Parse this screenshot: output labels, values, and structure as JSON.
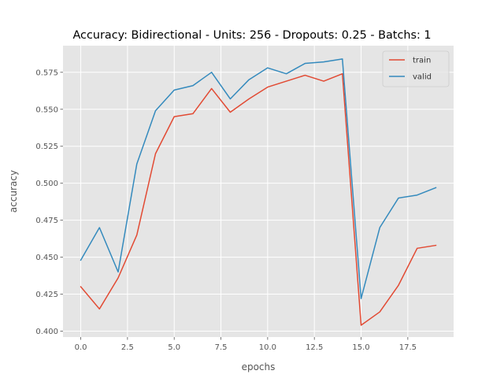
{
  "chart_data": {
    "type": "line",
    "title": "Accuracy: Bidirectional - Units: 256 - Dropouts: 0.25 - Batchs: 1",
    "xlabel": "epochs",
    "ylabel": "accuracy",
    "x": [
      0,
      1,
      2,
      3,
      4,
      5,
      6,
      7,
      8,
      9,
      10,
      11,
      12,
      13,
      14,
      15,
      16,
      17,
      18,
      19
    ],
    "xlim": [
      -0.95,
      19.95
    ],
    "ylim": [
      0.396,
      0.593
    ],
    "xticks": [
      0.0,
      2.5,
      5.0,
      7.5,
      10.0,
      12.5,
      15.0,
      17.5
    ],
    "xtick_labels": [
      "0.0",
      "2.5",
      "5.0",
      "7.5",
      "10.0",
      "12.5",
      "15.0",
      "17.5"
    ],
    "yticks": [
      0.4,
      0.425,
      0.45,
      0.475,
      0.5,
      0.525,
      0.55,
      0.575
    ],
    "ytick_labels": [
      "0.400",
      "0.425",
      "0.450",
      "0.475",
      "0.500",
      "0.525",
      "0.550",
      "0.575"
    ],
    "grid": true,
    "legend_position": "top-right",
    "series": [
      {
        "name": "train",
        "color": "#E24A33",
        "values": [
          0.43,
          0.415,
          0.436,
          0.465,
          0.52,
          0.545,
          0.547,
          0.564,
          0.548,
          0.557,
          0.565,
          0.569,
          0.573,
          0.569,
          0.574,
          0.404,
          0.413,
          0.431,
          0.456,
          0.458
        ]
      },
      {
        "name": "valid",
        "color": "#348ABD",
        "values": [
          0.448,
          0.47,
          0.44,
          0.513,
          0.549,
          0.563,
          0.566,
          0.575,
          0.557,
          0.57,
          0.578,
          0.574,
          0.581,
          0.582,
          0.584,
          0.422,
          0.47,
          0.49,
          0.492,
          0.497
        ]
      }
    ]
  }
}
